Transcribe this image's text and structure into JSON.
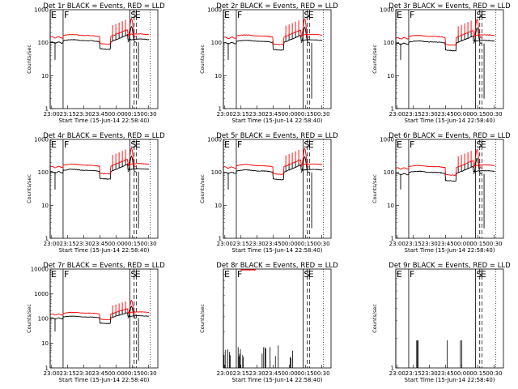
{
  "colors": {
    "events": "#000000",
    "lld": "#ff0000",
    "background": "#ffffff"
  },
  "common": {
    "ylabel": "Counts/sec",
    "xlabel": "Start Time (15-Jun-14 22:58:40)",
    "xtick_labels": [
      "23:00",
      "23:15",
      "23:30",
      "23:45",
      "00:00",
      "00:15",
      "00:30"
    ],
    "xtick_minutes": [
      1.33,
      16.33,
      31.33,
      46.33,
      61.33,
      76.33,
      91.33
    ],
    "x_range_minutes": [
      0,
      100
    ],
    "markers": [
      {
        "label": "E",
        "x_min": 0,
        "style": "solid"
      },
      {
        "label": "F",
        "x_min": 12,
        "style": "solid"
      },
      {
        "label": "S",
        "x_min": 74,
        "style": "solid"
      },
      {
        "label": "E",
        "x_min": 78,
        "style": "dashed"
      }
    ],
    "extra_lines": [
      {
        "x_min": 80,
        "style": "dashed"
      },
      {
        "x_min": 93,
        "style": "dotted"
      }
    ],
    "y_scale": "log"
  },
  "chart_data": [
    {
      "type": "line",
      "title": "Det 1r BLACK = Events, RED = LLD",
      "yticks": [
        "1",
        "10",
        "100",
        "1000"
      ],
      "ylim": [
        1,
        1000
      ],
      "profile": "detector",
      "series": [
        {
          "name": "Events",
          "base": 115,
          "color": "#000000"
        },
        {
          "name": "LLD",
          "base": 165,
          "color": "#ff0000"
        }
      ]
    },
    {
      "type": "line",
      "title": "Det 2r BLACK = Events, RED = LLD",
      "yticks": [
        "1",
        "10",
        "100",
        "1000"
      ],
      "ylim": [
        1,
        1000
      ],
      "profile": "detector",
      "series": [
        {
          "name": "Events",
          "base": 110,
          "color": "#000000"
        },
        {
          "name": "LLD",
          "base": 160,
          "color": "#ff0000"
        }
      ]
    },
    {
      "type": "line",
      "title": "Det 3r BLACK = Events, RED = LLD",
      "yticks": [
        "1",
        "10",
        "100",
        "1000"
      ],
      "ylim": [
        1,
        1000
      ],
      "profile": "detector",
      "series": [
        {
          "name": "Events",
          "base": 105,
          "color": "#000000"
        },
        {
          "name": "LLD",
          "base": 155,
          "color": "#ff0000"
        }
      ]
    },
    {
      "type": "line",
      "title": "Det 4r BLACK = Events, RED = LLD",
      "yticks": [
        "1",
        "10",
        "100",
        "1000"
      ],
      "ylim": [
        1,
        1000
      ],
      "profile": "detector",
      "series": [
        {
          "name": "Events",
          "base": 115,
          "color": "#000000"
        },
        {
          "name": "LLD",
          "base": 165,
          "color": "#ff0000"
        }
      ]
    },
    {
      "type": "line",
      "title": "Det 5r BLACK = Events, RED = LLD",
      "yticks": [
        "1",
        "10",
        "100",
        "1000"
      ],
      "ylim": [
        1,
        1000
      ],
      "profile": "detector",
      "series": [
        {
          "name": "Events",
          "base": 110,
          "color": "#000000"
        },
        {
          "name": "LLD",
          "base": 160,
          "color": "#ff0000"
        }
      ]
    },
    {
      "type": "line",
      "title": "Det 6r BLACK = Events, RED = LLD",
      "yticks": [
        "1",
        "10",
        "100",
        "1000"
      ],
      "ylim": [
        1,
        1000
      ],
      "profile": "detector",
      "series": [
        {
          "name": "Events",
          "base": 100,
          "color": "#000000"
        },
        {
          "name": "LLD",
          "base": 150,
          "color": "#ff0000"
        }
      ]
    },
    {
      "type": "line",
      "title": "Det 7r BLACK = Events, RED = LLD",
      "yticks": [
        "1",
        "10",
        "100",
        "1000",
        "10000"
      ],
      "ylim": [
        1,
        10000
      ],
      "profile": "detector",
      "series": [
        {
          "name": "Events",
          "base": 115,
          "color": "#000000"
        },
        {
          "name": "LLD",
          "base": 165,
          "color": "#ff0000"
        }
      ]
    },
    {
      "type": "line",
      "title": "Det 8r BLACK = Events, RED = LLD",
      "yticks": [],
      "ylim": [
        1.5,
        10
      ],
      "profile": "sparse",
      "series": [
        {
          "name": "Events",
          "base": 2,
          "color": "#000000"
        },
        {
          "name": "LLD",
          "base": 0,
          "color": "#ff0000"
        }
      ]
    },
    {
      "type": "line",
      "title": "Det 9r BLACK = Events, RED = LLD",
      "yticks": [
        "1"
      ],
      "ylim": [
        1,
        10
      ],
      "profile": "sparse9",
      "series": [
        {
          "name": "Events",
          "base": 2,
          "color": "#000000"
        },
        {
          "name": "LLD",
          "base": 0,
          "color": "#ff0000"
        }
      ]
    }
  ]
}
